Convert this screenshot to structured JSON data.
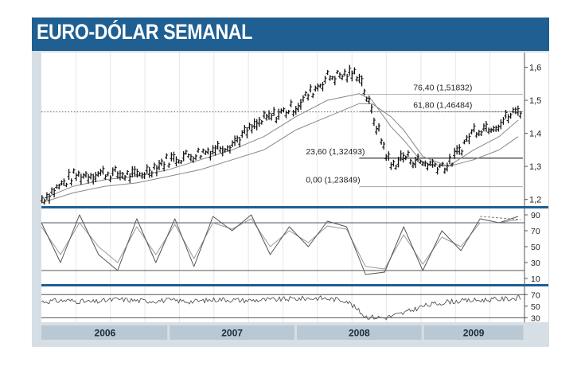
{
  "title": "EURO-DÓLAR SEMANAL",
  "colors": {
    "header_bg": "#1f5f92",
    "frame_bg": "#d6dfe5",
    "plot_bg": "#ffffff",
    "panel_separator": "#1f5f92",
    "price_line": "#111111",
    "moving_average": "#888888"
  },
  "chart_data": [
    {
      "type": "line",
      "panel": "price",
      "style": "ohlc-bars",
      "title": "",
      "y_ticks": [
        "1,6",
        "1,5",
        "1,4",
        "1,3",
        "1,2"
      ],
      "ylim": [
        1.18,
        1.63
      ],
      "x_periods": [
        "2006",
        "2007",
        "2008",
        "2009"
      ],
      "x": [
        2006.0,
        2006.25,
        2006.5,
        2006.75,
        2007.0,
        2007.25,
        2007.5,
        2007.75,
        2008.0,
        2008.25,
        2008.5,
        2008.6,
        2008.75,
        2008.85,
        2009.0,
        2009.2,
        2009.4,
        2009.6,
        2009.75
      ],
      "series": [
        {
          "values": [
            1.2,
            1.27,
            1.28,
            1.27,
            1.32,
            1.34,
            1.37,
            1.44,
            1.48,
            1.57,
            1.58,
            1.46,
            1.3,
            1.33,
            1.31,
            1.3,
            1.41,
            1.43,
            1.47
          ]
        }
      ],
      "moving_averages": [
        {
          "values": [
            1.2,
            1.24,
            1.26,
            1.27,
            1.29,
            1.32,
            1.35,
            1.39,
            1.45,
            1.5,
            1.52,
            1.5,
            1.42,
            1.38,
            1.31,
            1.3,
            1.35,
            1.39,
            1.44
          ]
        },
        {
          "values": [
            1.19,
            1.22,
            1.24,
            1.25,
            1.27,
            1.29,
            1.32,
            1.35,
            1.41,
            1.45,
            1.49,
            1.49,
            1.45,
            1.41,
            1.33,
            1.3,
            1.32,
            1.35,
            1.39
          ]
        }
      ],
      "reference_price": 1.4648,
      "fibonacci_levels": [
        {
          "label": "76,40 (1,51832)",
          "value": 1.51832
        },
        {
          "label": "61,80 (1,46484)",
          "value": 1.46484
        },
        {
          "label": "23,60 (1,32493)",
          "value": 1.32493
        },
        {
          "label": "0,00 (1,23849)",
          "value": 1.23849
        }
      ]
    },
    {
      "type": "line",
      "panel": "stochastic",
      "y_ticks": [
        "90",
        "70",
        "50",
        "30",
        "10"
      ],
      "ylim": [
        5,
        95
      ],
      "horizontal_lines": [
        80,
        20
      ],
      "x": [
        2006.0,
        2006.15,
        2006.3,
        2006.45,
        2006.6,
        2006.75,
        2006.9,
        2007.05,
        2007.2,
        2007.35,
        2007.5,
        2007.65,
        2007.8,
        2007.95,
        2008.1,
        2008.25,
        2008.4,
        2008.55,
        2008.7,
        2008.85,
        2009.0,
        2009.15,
        2009.3,
        2009.45,
        2009.6,
        2009.75
      ],
      "series": [
        {
          "values": [
            80,
            30,
            90,
            40,
            20,
            85,
            30,
            85,
            25,
            88,
            70,
            90,
            40,
            75,
            50,
            82,
            75,
            15,
            18,
            75,
            20,
            70,
            45,
            85,
            80,
            88
          ]
        },
        {
          "values": [
            75,
            40,
            80,
            50,
            30,
            75,
            40,
            78,
            35,
            80,
            72,
            85,
            50,
            70,
            55,
            76,
            72,
            25,
            22,
            65,
            28,
            62,
            50,
            80,
            80,
            84
          ]
        }
      ]
    },
    {
      "type": "line",
      "panel": "momentum",
      "y_ticks": [
        "70",
        "50",
        "30"
      ],
      "ylim": [
        25,
        80
      ],
      "horizontal_lines": [
        70,
        30
      ],
      "x": [
        2006.0,
        2006.2,
        2006.4,
        2006.6,
        2006.8,
        2007.0,
        2007.2,
        2007.4,
        2007.6,
        2007.8,
        2008.0,
        2008.2,
        2008.4,
        2008.55,
        2008.7,
        2008.85,
        2009.0,
        2009.2,
        2009.4,
        2009.6,
        2009.75
      ],
      "series": [
        {
          "values": [
            58,
            60,
            57,
            62,
            59,
            60,
            58,
            62,
            60,
            61,
            63,
            64,
            60,
            32,
            30,
            38,
            50,
            58,
            60,
            62,
            64
          ]
        }
      ]
    }
  ]
}
